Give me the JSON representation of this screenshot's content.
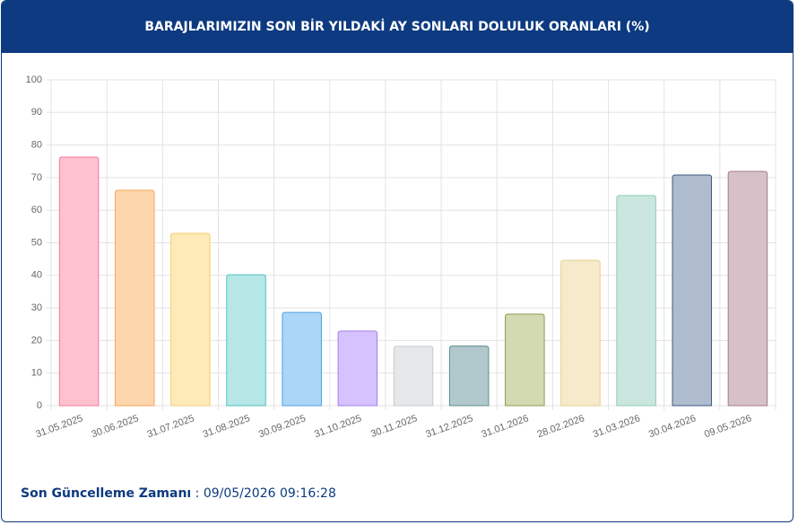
{
  "chart_data": {
    "type": "bar",
    "title": "BARAJLARIMIZIN SON BİR YILDAKİ AY SONLARI DOLULUK ORANLARI (%)",
    "categories": [
      "31.05.2025",
      "30.06.2025",
      "31.07.2025",
      "31.08.2025",
      "30.09.2025",
      "31.10.2025",
      "30.11.2025",
      "31.12.2025",
      "31.01.2026",
      "28.02.2026",
      "31.03.2026",
      "30.04.2026",
      "09.05.2026"
    ],
    "values": [
      76.3,
      66.1,
      52.9,
      40.2,
      28.6,
      22.9,
      18.2,
      18.3,
      28.1,
      44.6,
      64.5,
      70.8,
      71.9
    ],
    "colors": [
      "#ffc1d0",
      "#fed6ae",
      "#feeab8",
      "#b6e6e6",
      "#acd6f7",
      "#d5c2fe",
      "#e6e7e8",
      "#b1c9cc",
      "#d3d9b1",
      "#f6eacb",
      "#cbe6de",
      "#afbcce",
      "#d6c1c8"
    ],
    "border_colors": [
      "#f5799a",
      "#f5a55a",
      "#f2cf6f",
      "#4fc3c3",
      "#4ba3e0",
      "#a47ee8",
      "#c8c9cb",
      "#5c8a91",
      "#8d9b4f",
      "#e6cf8b",
      "#8ccab7",
      "#3e5a82",
      "#a57a89"
    ],
    "ylim": [
      0,
      100
    ],
    "yticks": [
      0,
      10,
      20,
      30,
      40,
      50,
      60,
      70,
      80,
      90,
      100
    ],
    "grid": true
  },
  "footer": {
    "label": "Son Güncelleme Zamanı",
    "value": ": 09/05/2026 09:16:28"
  }
}
